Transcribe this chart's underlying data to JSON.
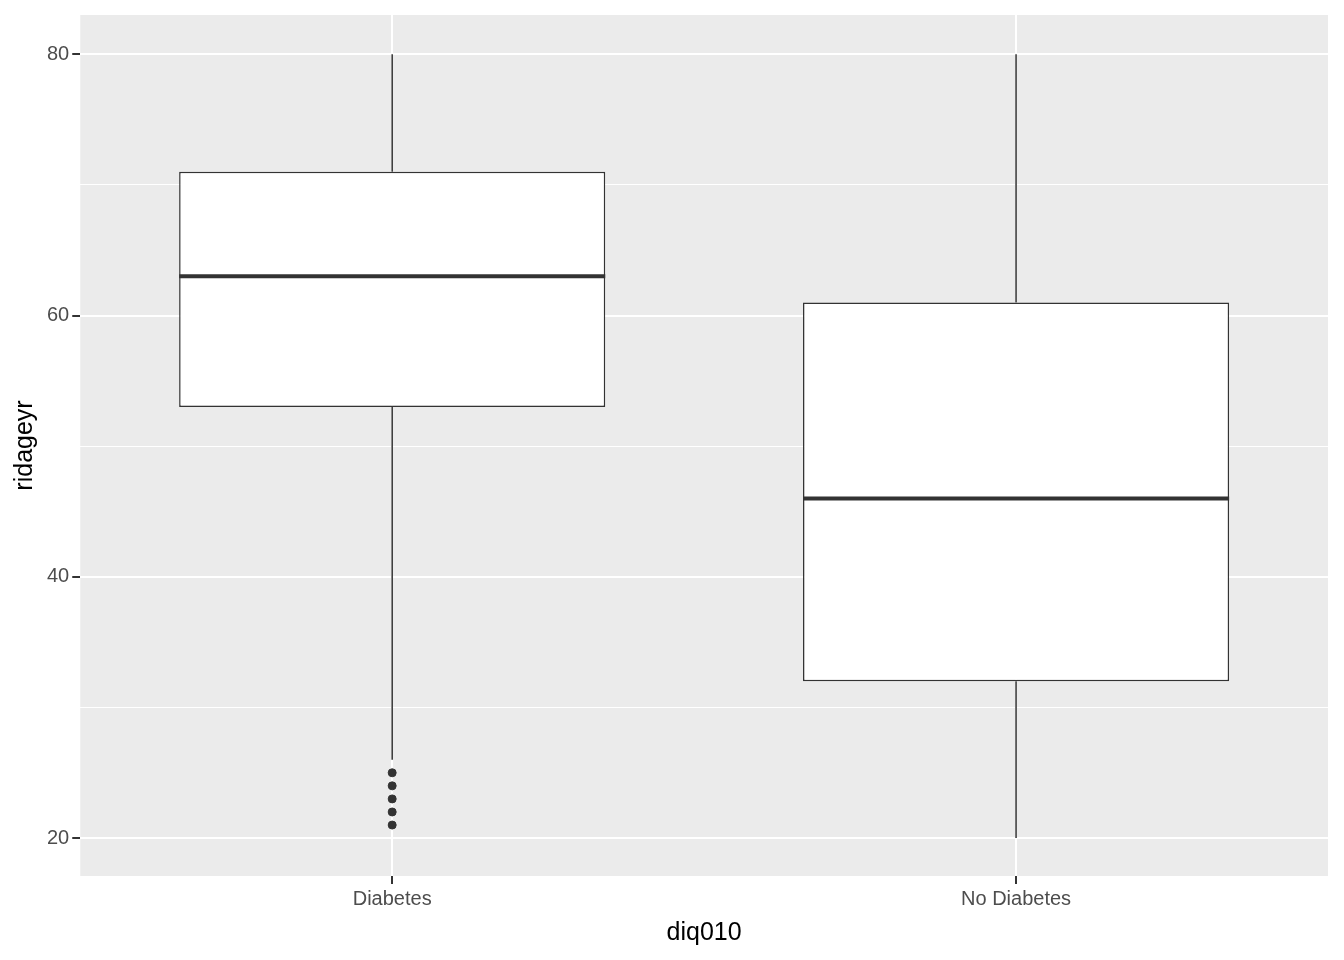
{
  "chart_data": {
    "type": "box",
    "xlabel": "diq010",
    "ylabel": "ridageyr",
    "categories": [
      "Diabetes",
      "No Diabetes"
    ],
    "boxes": [
      {
        "low": 26,
        "q1": 53,
        "median": 63,
        "q3": 71,
        "high": 80,
        "outliers": [
          21,
          22,
          23,
          24,
          25
        ]
      },
      {
        "low": 20,
        "q1": 32,
        "median": 46,
        "q3": 61,
        "high": 80
      }
    ],
    "ylim": [
      17.1,
      83
    ],
    "yticks": [
      20,
      {
        "value": 30,
        "label": null
      },
      40,
      {
        "value": 50,
        "label": null
      },
      60,
      {
        "value": 70,
        "label": null
      },
      80
    ],
    "grid": true,
    "legend": false
  }
}
